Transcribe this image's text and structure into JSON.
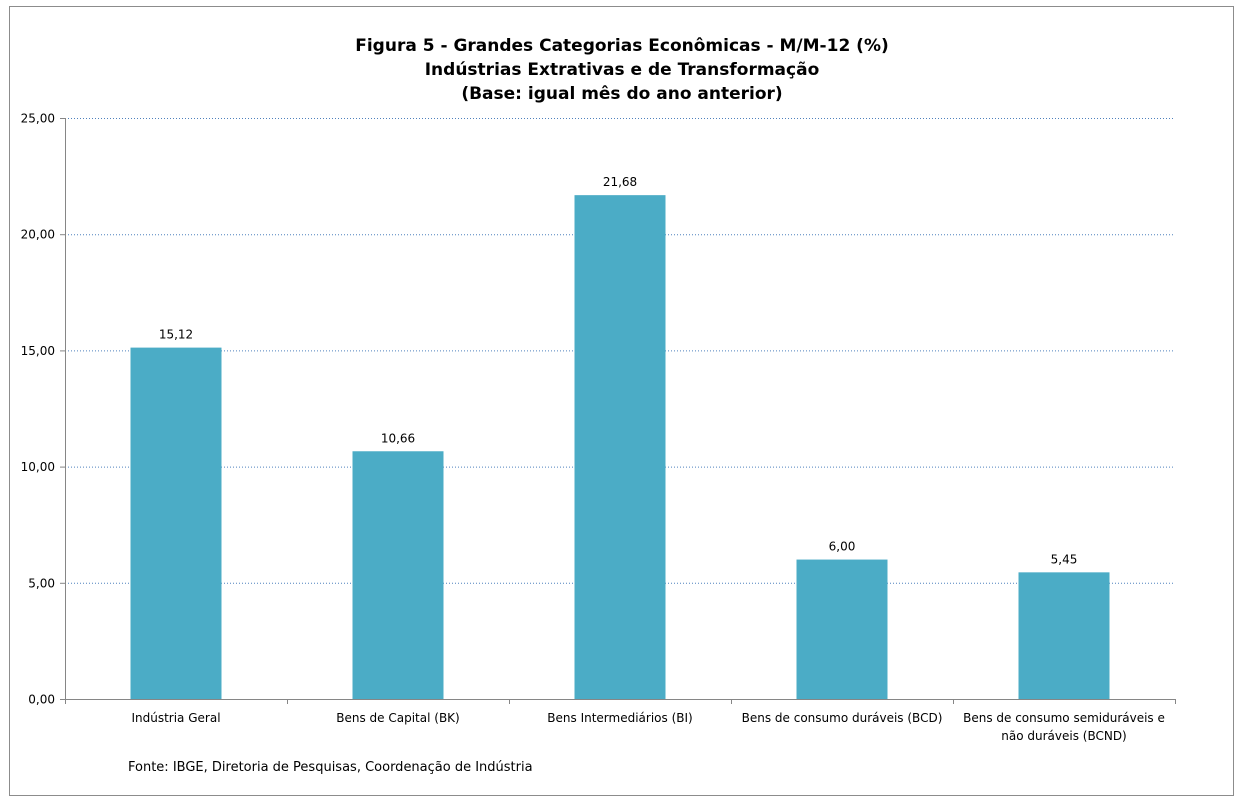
{
  "chart_data": {
    "type": "bar",
    "title_lines": [
      "Figura 5 - Grandes Categorias Econômicas - M/M-12 (%)",
      "Indústrias Extrativas e de Transformação",
      "(Base: igual mês do ano anterior)"
    ],
    "categories": [
      [
        "Indústria Geral"
      ],
      [
        "Bens de Capital (BK)"
      ],
      [
        "Bens Intermediários (BI)"
      ],
      [
        "Bens de consumo duráveis (BCD)"
      ],
      [
        "Bens de consumo semiduráveis e",
        "não duráveis (BCND)"
      ]
    ],
    "values": [
      15.12,
      10.66,
      21.68,
      6.0,
      5.45
    ],
    "value_labels": [
      "15,12",
      "10,66",
      "21,68",
      "6,00",
      "5,45"
    ],
    "y_ticks": [
      0,
      5,
      10,
      15,
      20,
      25
    ],
    "y_tick_labels": [
      "0,00",
      "5,00",
      "10,00",
      "15,00",
      "20,00",
      "25,00"
    ],
    "ylim": [
      0,
      25
    ],
    "grid": true,
    "bar_color": "#4bacc6",
    "grid_color": "#4f81bd",
    "source": "Fonte: IBGE, Diretoria de Pesquisas, Coordenação de Indústria"
  }
}
